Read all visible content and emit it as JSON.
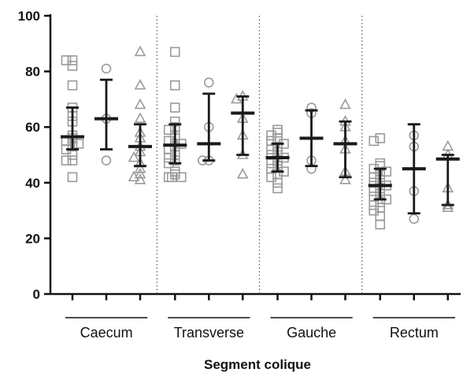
{
  "chart_data": {
    "type": "scatter",
    "subtype": "dot plot with mean and error bars",
    "title": "",
    "xlabel": "Segment colique",
    "ylabel": "",
    "ylim": [
      0,
      100
    ],
    "yticks": [
      "0",
      "20",
      "40",
      "60",
      "80",
      "100"
    ],
    "grid": false,
    "separators": "dotted vertical lines between segments",
    "categories": [
      "Caecum",
      "Transverse",
      "Gauche",
      "Rectum"
    ],
    "marker_colors": {
      "points": "#9a9a9a",
      "summary": "#1a1a1a"
    },
    "series": [
      {
        "marker": "square",
        "groups": [
          {
            "points": [
              84,
              84,
              82,
              75,
              67,
              64,
              62,
              57,
              56,
              55,
              54,
              53,
              52,
              50,
              48,
              48,
              42
            ],
            "mean": 56.5,
            "low": 52,
            "high": 67
          },
          {
            "points": [
              87,
              75,
              67,
              62,
              60,
              59,
              57,
              56,
              55,
              54,
              53,
              52,
              50,
              49,
              48,
              47,
              44,
              43,
              42,
              42,
              42
            ],
            "mean": 53.5,
            "low": 47,
            "high": 61
          },
          {
            "points": [
              59,
              58,
              57,
              56,
              55,
              54,
              53,
              52,
              51,
              50,
              49,
              48,
              47,
              46,
              45,
              44,
              43,
              42,
              40,
              38
            ],
            "mean": 49,
            "low": 44,
            "high": 54
          },
          {
            "points": [
              56,
              55,
              47,
              46,
              45,
              44,
              43,
              42,
              41,
              40,
              39,
              38,
              37,
              36,
              35,
              34,
              33,
              32,
              31,
              30,
              28,
              25
            ],
            "mean": 39,
            "low": 34,
            "high": 45
          }
        ]
      },
      {
        "marker": "circle",
        "groups": [
          {
            "points": [
              81,
              63,
              48
            ],
            "mean": 63,
            "low": 52,
            "high": 77
          },
          {
            "points": [
              76,
              60,
              48,
              48
            ],
            "mean": 54,
            "low": 48,
            "high": 72
          },
          {
            "points": [
              67,
              65,
              48,
              45
            ],
            "mean": 56,
            "low": 46,
            "high": 66
          },
          {
            "points": [
              57,
              53,
              37,
              27
            ],
            "mean": 45,
            "low": 29,
            "high": 61
          }
        ]
      },
      {
        "marker": "triangle",
        "groups": [
          {
            "points": [
              87,
              75,
              68,
              63,
              58,
              56,
              53,
              51,
              49,
              47,
              45,
              43,
              42,
              41
            ],
            "mean": 53,
            "low": 46,
            "high": 61
          },
          {
            "points": [
              71,
              70,
              63,
              57,
              50,
              43
            ],
            "mean": 65,
            "low": 50,
            "high": 71
          },
          {
            "points": [
              68,
              62,
              60,
              55,
              52,
              44,
              41
            ],
            "mean": 54,
            "low": 42,
            "high": 62
          },
          {
            "points": [
              53,
              50,
              38,
              32,
              31
            ],
            "mean": 48.5,
            "low": 32,
            "high": 50
          }
        ]
      }
    ]
  }
}
